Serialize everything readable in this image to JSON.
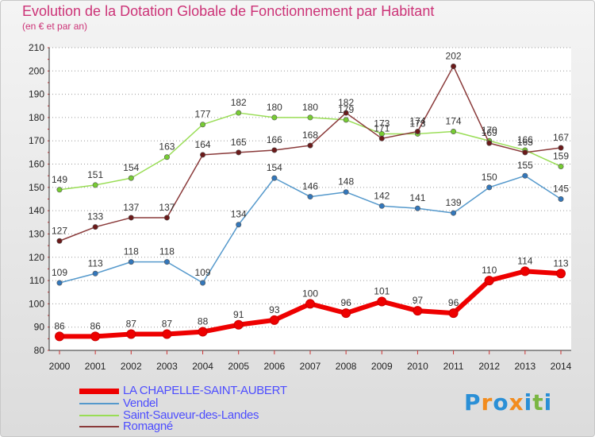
{
  "title": "Evolution de la Dotation Globale de Fonctionnement par Habitant",
  "subtitle": "(en € et par an)",
  "logo": {
    "text": "Proxiti",
    "letters": [
      "P",
      "r",
      "o",
      "x",
      "i",
      "t",
      "i"
    ],
    "colors": [
      "#2a8fd6",
      "#f28c1e",
      "#2a8fd6",
      "#f28c1e",
      "#2a8fd6",
      "#7ab642",
      "#2a8fd6"
    ]
  },
  "chart_data": {
    "type": "line",
    "title": "Evolution de la Dotation Globale de Fonctionnement par Habitant",
    "subtitle": "(en € et par an)",
    "xlabel": "",
    "ylabel": "",
    "x": [
      2000,
      2001,
      2002,
      2003,
      2004,
      2005,
      2006,
      2007,
      2008,
      2009,
      2010,
      2011,
      2012,
      2013,
      2014
    ],
    "ylim": [
      80,
      210
    ],
    "yticks": [
      80,
      90,
      100,
      110,
      120,
      130,
      140,
      150,
      160,
      170,
      180,
      190,
      200,
      210
    ],
    "grid": "horizontal dotted",
    "legend_position": "bottom-left",
    "series": [
      {
        "name": "Saint-Sauveur-des-Landes",
        "color": "#99dd55",
        "marker": "#77cc33",
        "width": 1.5,
        "values": [
          149,
          151,
          154,
          163,
          177,
          182,
          180,
          180,
          179,
          173,
          173,
          174,
          170,
          166,
          159
        ]
      },
      {
        "name": "Romagné",
        "color": "#8a3a3a",
        "marker": "#6b1a1a",
        "width": 1.5,
        "values": [
          127,
          133,
          137,
          137,
          164,
          165,
          166,
          168,
          182,
          171,
          174,
          202,
          169,
          165,
          167
        ]
      },
      {
        "name": "Vendel",
        "color": "#5599cc",
        "marker": "#3377bb",
        "width": 1.5,
        "values": [
          109,
          113,
          118,
          118,
          109,
          134,
          154,
          146,
          148,
          142,
          141,
          139,
          150,
          155,
          145
        ]
      },
      {
        "name": "LA CHAPELLE-SAINT-AUBERT",
        "color": "#ee0000",
        "marker": "#ee0000",
        "width": 6,
        "values": [
          86,
          86,
          87,
          87,
          88,
          91,
          93,
          100,
          96,
          101,
          97,
          96,
          110,
          114,
          113
        ]
      }
    ]
  },
  "legend": [
    {
      "label": "LA CHAPELLE-SAINT-AUBERT",
      "color": "#ee0000",
      "width": 7
    },
    {
      "label": "Vendel",
      "color": "#5599cc",
      "width": 2
    },
    {
      "label": "Saint-Sauveur-des-Landes",
      "color": "#99dd55",
      "width": 2
    },
    {
      "label": "Romagné",
      "color": "#8a3a3a",
      "width": 2
    }
  ]
}
